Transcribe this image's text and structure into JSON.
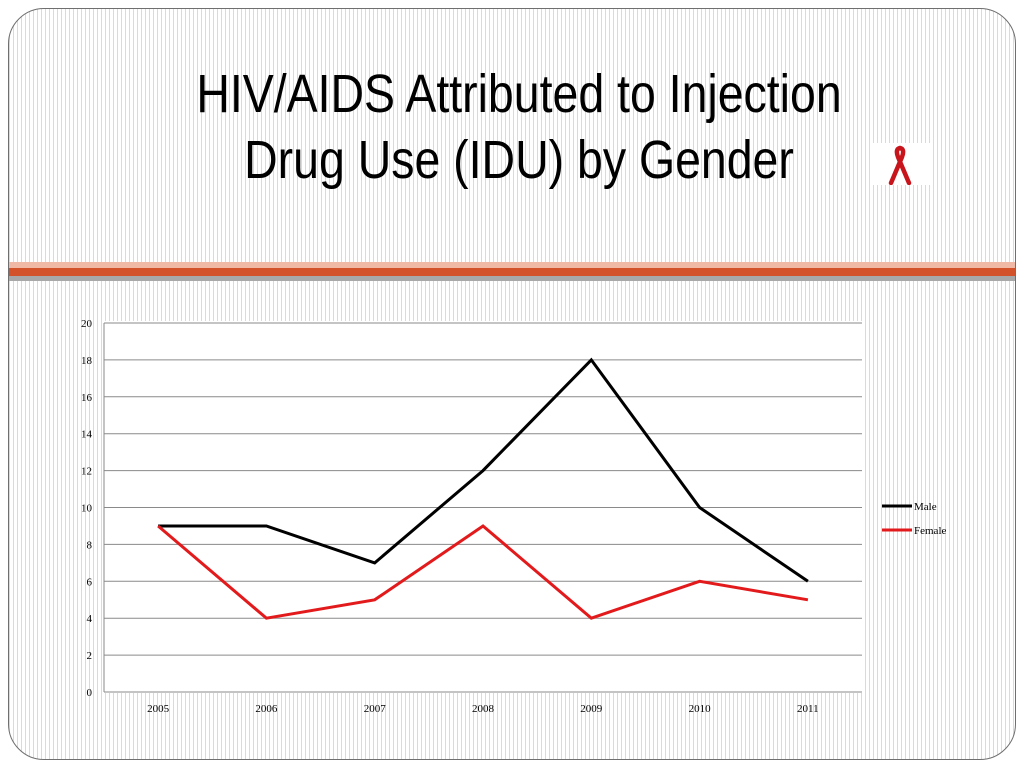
{
  "slide": {
    "title_line1": "HIV/AIDS Attributed to Injection",
    "title_line2": "Drug Use (IDU) by Gender",
    "title_icon": "red-ribbon-icon",
    "colors": {
      "band_light": "#f0b9a6",
      "band_main": "#d4522a",
      "band_gray": "#a8a8a8",
      "ribbon": "#c8141b"
    }
  },
  "chart_data": {
    "type": "line",
    "categories": [
      "2005",
      "2006",
      "2007",
      "2008",
      "2009",
      "2010",
      "2011"
    ],
    "series": [
      {
        "name": "Male",
        "color": "#000000",
        "values": [
          9,
          9,
          7,
          12,
          18,
          10,
          6
        ]
      },
      {
        "name": "Female",
        "color": "#e31a1c",
        "values": [
          9,
          4,
          5,
          9,
          4,
          6,
          5
        ]
      }
    ],
    "ylim": [
      0,
      20
    ],
    "yticks": [
      0,
      2,
      4,
      6,
      8,
      10,
      12,
      14,
      16,
      18,
      20
    ],
    "grid": true,
    "legend": "right",
    "title": "",
    "xlabel": "",
    "ylabel": ""
  }
}
